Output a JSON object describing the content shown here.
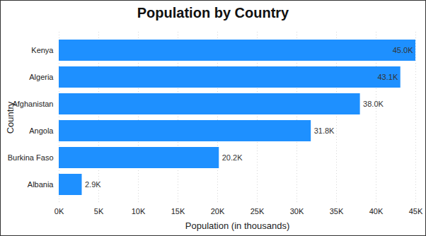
{
  "chart_data": {
    "type": "bar",
    "title": "Population by Country",
    "orientation": "horizontal",
    "categories": [
      "Kenya",
      "Algeria",
      "Afghanistan",
      "Angola",
      "Burkina Faso",
      "Albania"
    ],
    "values": [
      45000,
      43100,
      38000,
      31800,
      20200,
      2900
    ],
    "value_labels": [
      "45.0K",
      "43.1K",
      "38.0K",
      "31.8K",
      "20.2K",
      "2.9K"
    ],
    "data_labels": true,
    "color": "#1e90ff",
    "x_label": "Population (in thousands)",
    "y_label": "Country",
    "xlim": [
      0,
      45000
    ],
    "xticks": [
      {
        "value": 0,
        "label": "0K"
      },
      {
        "value": 5000,
        "label": "5K"
      },
      {
        "value": 10000,
        "label": "10K"
      },
      {
        "value": 15000,
        "label": "15K"
      },
      {
        "value": 20000,
        "label": "20K"
      },
      {
        "value": 25000,
        "label": "25K"
      },
      {
        "value": 30000,
        "label": "30K"
      },
      {
        "value": 35000,
        "label": "35K"
      },
      {
        "value": 40000,
        "label": "40K"
      },
      {
        "value": 45000,
        "label": "45K"
      }
    ],
    "grid": true
  }
}
